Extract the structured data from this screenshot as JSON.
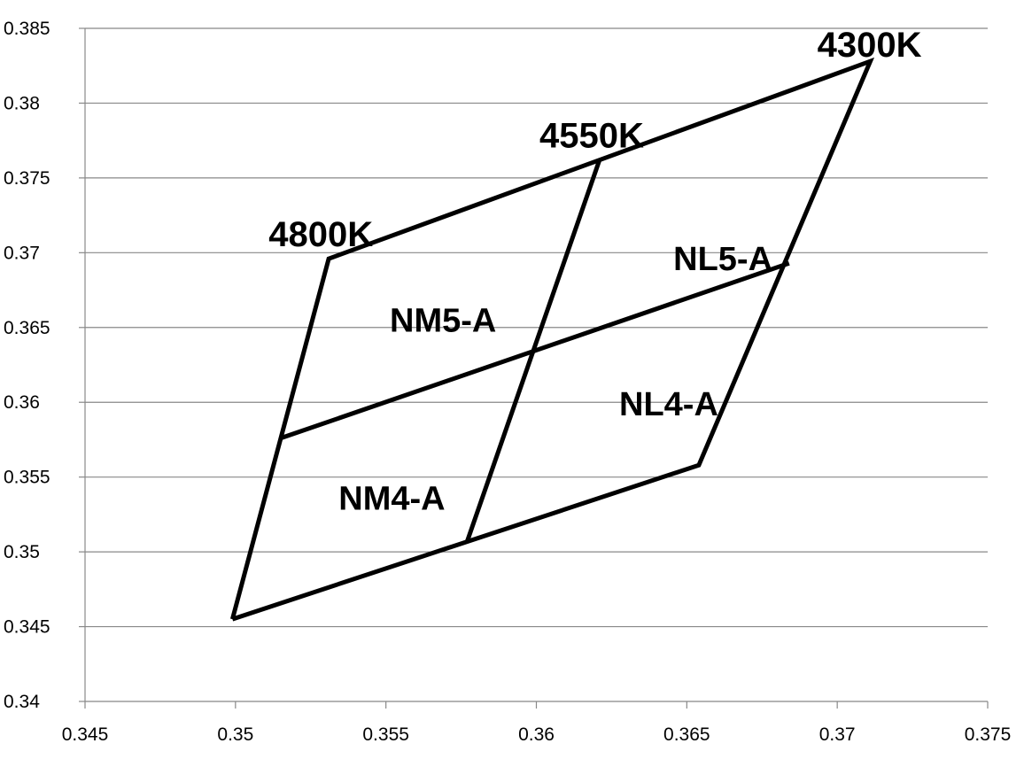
{
  "chart_data": {
    "type": "scatter",
    "title": "",
    "xlabel": "",
    "ylabel": "",
    "xlim": [
      0.345,
      0.375
    ],
    "ylim": [
      0.34,
      0.385
    ],
    "x_ticks": [
      "0.345",
      "0.35",
      "0.355",
      "0.36",
      "0.365",
      "0.37",
      "0.375"
    ],
    "y_ticks": [
      "0.34",
      "0.345",
      "0.35",
      "0.355",
      "0.36",
      "0.365",
      "0.37",
      "0.375",
      "0.38",
      "0.385"
    ],
    "grid": "horizontal",
    "legend": "none",
    "line_color": "#000000",
    "grid_color": "#888888",
    "series": [
      {
        "x": [
          0.3499,
          0.3531,
          0.3711,
          0.3654,
          0.3499
        ],
        "y": [
          0.3455,
          0.3696,
          0.3828,
          0.3558,
          0.3455
        ]
      },
      {
        "x": [
          0.3515,
          0.3684
        ],
        "y": [
          0.3576,
          0.3693
        ]
      },
      {
        "x": [
          0.3621,
          0.3577
        ],
        "y": [
          0.3762,
          0.3507
        ]
      }
    ],
    "region_labels": [
      {
        "text": "NM5-A",
        "x": 0.3569,
        "y": 0.3655
      },
      {
        "text": "NL5-A",
        "x": 0.3662,
        "y": 0.3696
      },
      {
        "text": "NM4-A",
        "x": 0.3552,
        "y": 0.3536
      },
      {
        "text": "NL4-A",
        "x": 0.3644,
        "y": 0.3599
      }
    ],
    "cct_labels": [
      {
        "text": "4800K",
        "x": 0.3531,
        "y": 0.3696
      },
      {
        "text": "4550K",
        "x": 0.3621,
        "y": 0.3762
      },
      {
        "text": "4300K",
        "x": 0.3711,
        "y": 0.3828
      }
    ]
  }
}
